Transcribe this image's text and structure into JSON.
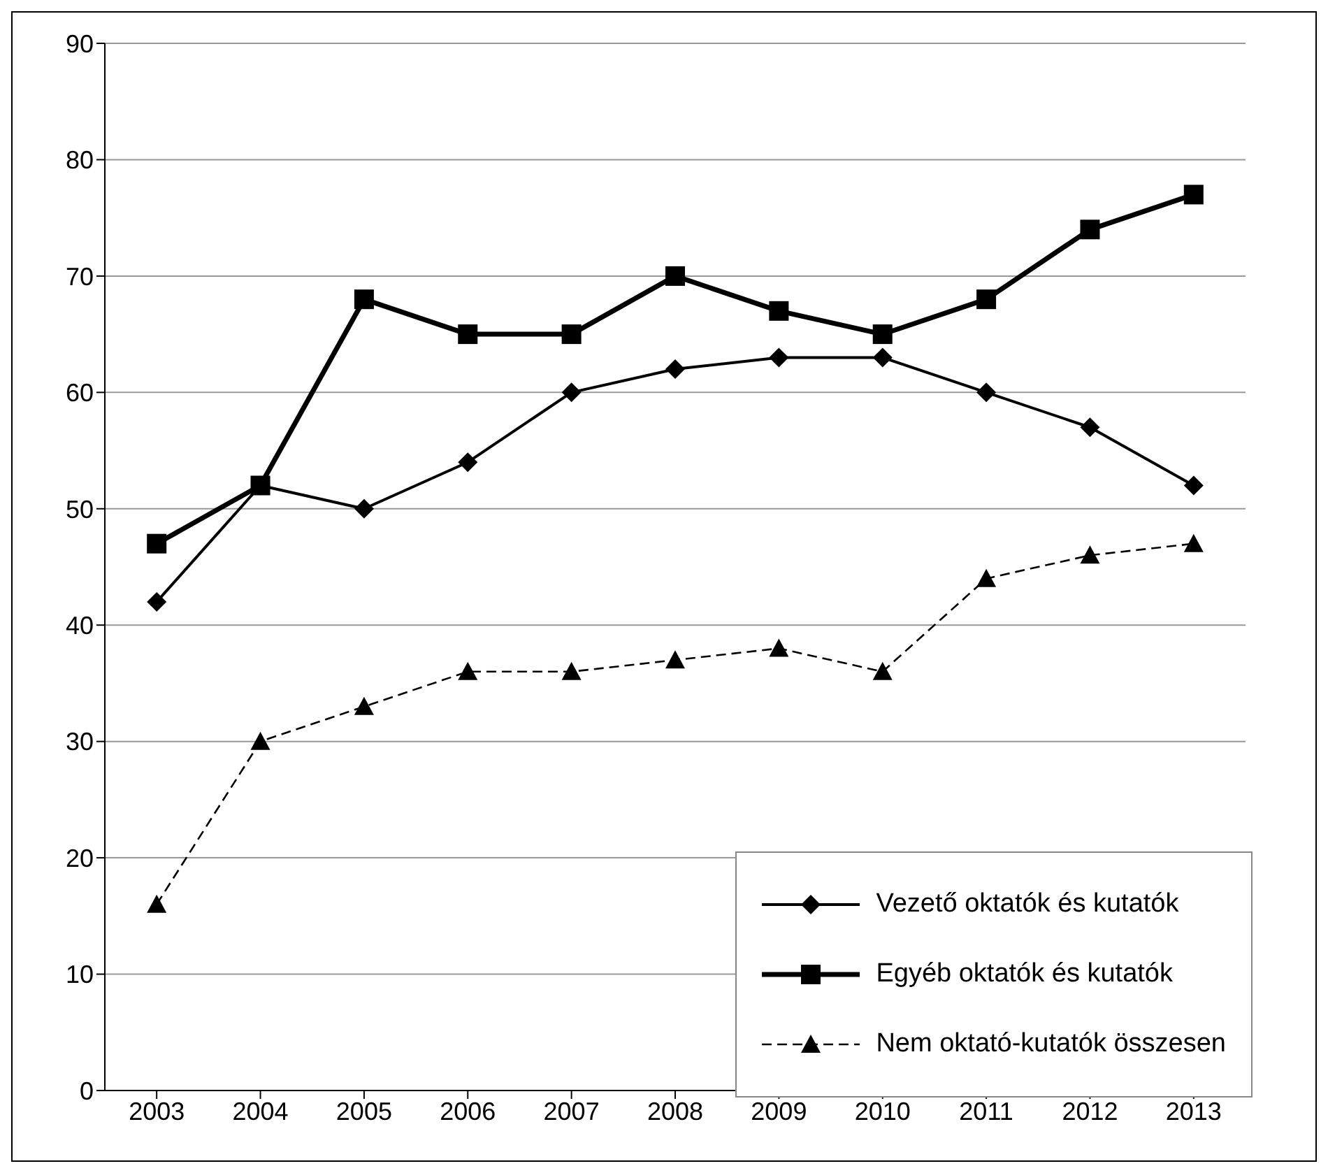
{
  "chart_data": {
    "type": "line",
    "categories": [
      "2003",
      "2004",
      "2005",
      "2006",
      "2007",
      "2008",
      "2009",
      "2010",
      "2011",
      "2012",
      "2013"
    ],
    "series": [
      {
        "name": "Vezető oktatók és kutatók",
        "color": "#000000",
        "marker": "diamond",
        "line_style": "solid",
        "values": [
          42,
          52,
          50,
          54,
          60,
          62,
          63,
          63,
          60,
          57,
          52
        ]
      },
      {
        "name": "Egyéb oktatók és kutatók",
        "color": "#000000",
        "marker": "square",
        "line_style": "solid",
        "values": [
          47,
          52,
          68,
          65,
          65,
          70,
          67,
          65,
          68,
          74,
          77
        ]
      },
      {
        "name": "Nem oktató-kutatók összesen",
        "color": "#000000",
        "marker": "triangle",
        "line_style": "dashed",
        "values": [
          16,
          30,
          33,
          36,
          36,
          37,
          38,
          36,
          44,
          46,
          47
        ]
      }
    ],
    "ylim": [
      0,
      90
    ],
    "yticks": [
      0,
      10,
      20,
      30,
      40,
      50,
      60,
      70,
      80,
      90
    ],
    "grid": "y",
    "legend": "bottom right"
  }
}
